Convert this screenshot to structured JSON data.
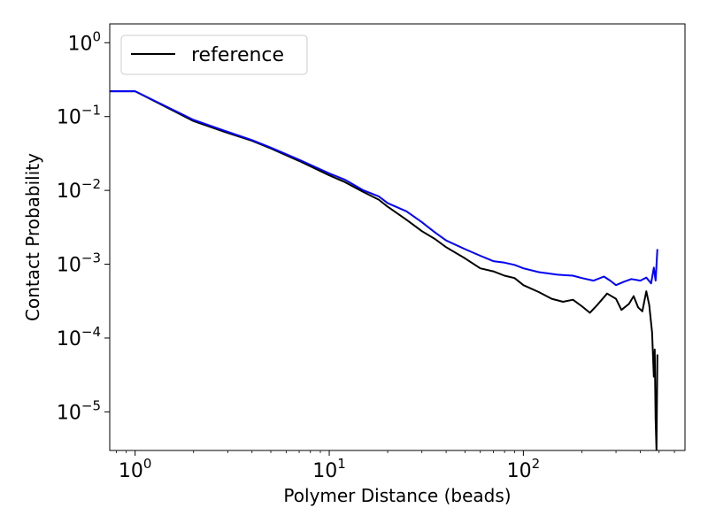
{
  "chart_data": {
    "type": "line",
    "title": "",
    "xlabel": "Polymer Distance (beads)",
    "ylabel": "Contact Probability",
    "xscale": "log",
    "yscale": "log",
    "xlim": [
      0.74,
      680
    ],
    "ylim": [
      3e-06,
      1.8
    ],
    "grid": false,
    "legend": {
      "position": "top-left",
      "entries": [
        "reference"
      ]
    },
    "x_ticks": [
      {
        "base": "10",
        "exp": "0",
        "value": 1
      },
      {
        "base": "10",
        "exp": "1",
        "value": 10
      },
      {
        "base": "10",
        "exp": "2",
        "value": 100
      }
    ],
    "y_ticks": [
      {
        "base": "10",
        "exp": "0",
        "value": 1
      },
      {
        "base": "10",
        "exp": "−1",
        "value": 0.1
      },
      {
        "base": "10",
        "exp": "−2",
        "value": 0.01
      },
      {
        "base": "10",
        "exp": "−3",
        "value": 0.001
      },
      {
        "base": "10",
        "exp": "−4",
        "value": 0.0001
      },
      {
        "base": "10",
        "exp": "−5",
        "value": 1e-05
      }
    ],
    "series": [
      {
        "name": "reference",
        "color": "#000000",
        "points": [
          [
            0.74,
            0.22
          ],
          [
            1,
            0.22
          ],
          [
            2,
            0.087
          ],
          [
            3,
            0.06
          ],
          [
            4,
            0.047
          ],
          [
            5,
            0.037
          ],
          [
            7,
            0.025
          ],
          [
            10,
            0.016
          ],
          [
            12,
            0.013
          ],
          [
            15,
            0.0095
          ],
          [
            18,
            0.0075
          ],
          [
            20,
            0.006
          ],
          [
            25,
            0.004
          ],
          [
            30,
            0.0028
          ],
          [
            35,
            0.0022
          ],
          [
            40,
            0.0017
          ],
          [
            50,
            0.0012
          ],
          [
            60,
            0.00088
          ],
          [
            70,
            0.0008
          ],
          [
            80,
            0.0007
          ],
          [
            90,
            0.00065
          ],
          [
            100,
            0.00052
          ],
          [
            120,
            0.00042
          ],
          [
            140,
            0.00034
          ],
          [
            160,
            0.00031
          ],
          [
            180,
            0.00033
          ],
          [
            200,
            0.00027
          ],
          [
            220,
            0.00022
          ],
          [
            240,
            0.00028
          ],
          [
            270,
            0.0004
          ],
          [
            300,
            0.00034
          ],
          [
            320,
            0.00024
          ],
          [
            350,
            0.00029
          ],
          [
            370,
            0.00037
          ],
          [
            390,
            0.00026
          ],
          [
            410,
            0.00023
          ],
          [
            430,
            0.00043
          ],
          [
            445,
            0.00028
          ],
          [
            460,
            0.00012
          ],
          [
            470,
            3e-05
          ],
          [
            475,
            7e-05
          ],
          [
            480,
            8e-06
          ],
          [
            485,
            3e-06
          ],
          [
            490,
            6e-05
          ]
        ]
      },
      {
        "name": "",
        "color": "#0000ff",
        "points": [
          [
            0.74,
            0.22
          ],
          [
            1,
            0.22
          ],
          [
            2,
            0.09
          ],
          [
            3,
            0.062
          ],
          [
            4,
            0.048
          ],
          [
            5,
            0.038
          ],
          [
            7,
            0.026
          ],
          [
            10,
            0.017
          ],
          [
            12,
            0.014
          ],
          [
            15,
            0.01
          ],
          [
            18,
            0.0083
          ],
          [
            20,
            0.0067
          ],
          [
            25,
            0.0052
          ],
          [
            30,
            0.0037
          ],
          [
            35,
            0.0027
          ],
          [
            40,
            0.0021
          ],
          [
            50,
            0.0016
          ],
          [
            60,
            0.0013
          ],
          [
            70,
            0.0011
          ],
          [
            80,
            0.00105
          ],
          [
            90,
            0.00098
          ],
          [
            100,
            0.00088
          ],
          [
            120,
            0.00078
          ],
          [
            150,
            0.00072
          ],
          [
            180,
            0.0007
          ],
          [
            200,
            0.00065
          ],
          [
            230,
            0.0006
          ],
          [
            260,
            0.00068
          ],
          [
            280,
            0.0006
          ],
          [
            300,
            0.00052
          ],
          [
            330,
            0.00058
          ],
          [
            360,
            0.00063
          ],
          [
            400,
            0.0006
          ],
          [
            430,
            0.00066
          ],
          [
            455,
            0.00055
          ],
          [
            470,
            0.0009
          ],
          [
            480,
            0.0006
          ],
          [
            490,
            0.0016
          ]
        ]
      }
    ]
  }
}
